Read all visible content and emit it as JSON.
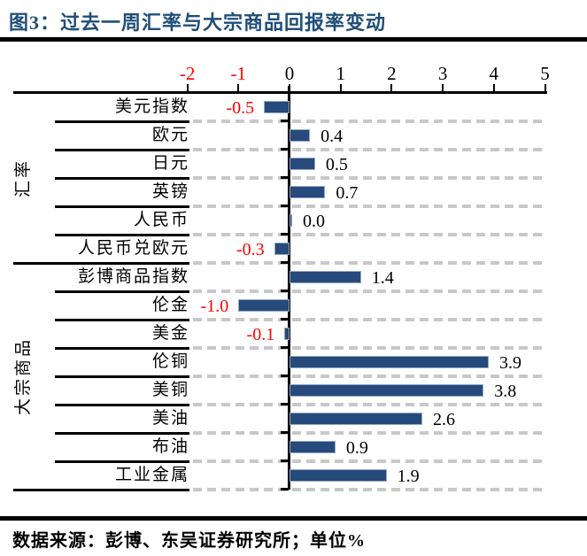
{
  "header": {
    "title": "图3：过去一周汇率与大宗商品回报率变动",
    "title_color": "#1f4e79"
  },
  "footer": {
    "source_note": "数据来源：彭博、东吴证券研究所；单位%"
  },
  "chart_data": {
    "type": "bar",
    "orientation": "horizontal",
    "title": "过去一周汇率与大宗商品回报率变动",
    "unit": "%",
    "xlim": [
      -2,
      5
    ],
    "x_ticks": [
      -2,
      -1,
      0,
      1,
      2,
      3,
      4,
      5
    ],
    "grid": "dashed-row-separators",
    "bar_color": "#254a7b",
    "negative_text_color": "#fe0000",
    "positive_text_color": "#000000",
    "groups": [
      {
        "label": "汇率",
        "items": [
          {
            "label": "美元指数",
            "value": -0.5
          },
          {
            "label": "欧元",
            "value": 0.4
          },
          {
            "label": "日元",
            "value": 0.5
          },
          {
            "label": "英镑",
            "value": 0.7
          },
          {
            "label": "人民币",
            "value": 0.0
          },
          {
            "label": "人民币兑欧元",
            "value": -0.3
          }
        ]
      },
      {
        "label": "大宗商品",
        "items": [
          {
            "label": "彭博商品指数",
            "value": 1.4
          },
          {
            "label": "伦金",
            "value": -1.0
          },
          {
            "label": "美金",
            "value": -0.1
          },
          {
            "label": "伦铜",
            "value": 3.9
          },
          {
            "label": "美铜",
            "value": 3.8
          },
          {
            "label": "美油",
            "value": 2.6
          },
          {
            "label": "布油",
            "value": 0.9
          },
          {
            "label": "工业金属",
            "value": 1.9
          }
        ]
      }
    ]
  }
}
